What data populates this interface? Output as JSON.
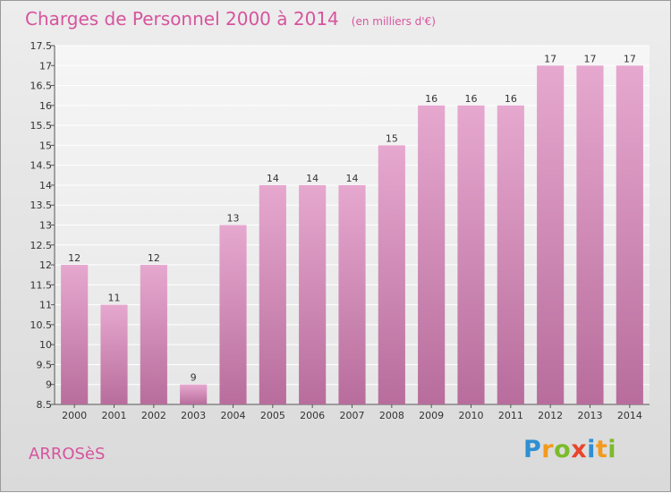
{
  "header": {
    "title": "Charges de Personnel 2000 à 2014",
    "subtitle": "(en milliers d'€)"
  },
  "footer": {
    "commune": "ARROSèS",
    "logo_letters": [
      {
        "ch": "P",
        "color": "#2e8fd1"
      },
      {
        "ch": "r",
        "color": "#f29a1d"
      },
      {
        "ch": "o",
        "color": "#7cbb2a"
      },
      {
        "ch": "x",
        "color": "#e8442c"
      },
      {
        "ch": "i",
        "color": "#2e8fd1"
      },
      {
        "ch": "t",
        "color": "#f29a1d"
      },
      {
        "ch": "i",
        "color": "#7cbb2a"
      }
    ]
  },
  "colors": {
    "bar_top": "#e6a8cf",
    "bar_bottom": "#b86d9c",
    "plot_bg_top": "#f6f6f6",
    "plot_bg_bottom": "#e6e6e6"
  },
  "chart_data": {
    "type": "bar",
    "title": "Charges de Personnel 2000 à 2014",
    "subtitle": "(en milliers d'€)",
    "categories": [
      "2000",
      "2001",
      "2002",
      "2003",
      "2004",
      "2005",
      "2006",
      "2007",
      "2008",
      "2009",
      "2010",
      "2011",
      "2012",
      "2013",
      "2014"
    ],
    "values": [
      12,
      11,
      12,
      9,
      13,
      14,
      14,
      14,
      15,
      16,
      16,
      16,
      17,
      17,
      17
    ],
    "ylim": [
      8.5,
      17.5
    ],
    "yticks": [
      "8.5",
      "9",
      "9.5",
      "10",
      "10.5",
      "11",
      "11.5",
      "12",
      "12.5",
      "13",
      "13.5",
      "14",
      "14.5",
      "15",
      "15.5",
      "16",
      "16.5",
      "17",
      "17.5"
    ],
    "grid": true,
    "legend": "none"
  }
}
